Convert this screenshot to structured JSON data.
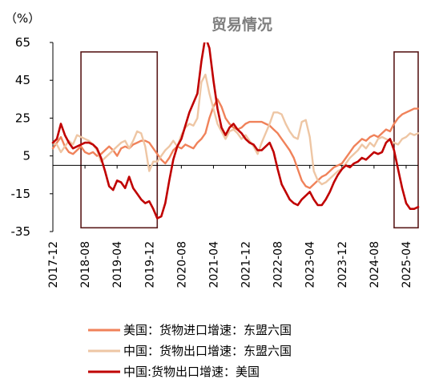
{
  "chart_data": {
    "type": "line",
    "title": "贸易情况",
    "unit_label": "（%）",
    "ylim": [
      -35,
      65
    ],
    "yticks": [
      -35,
      -15,
      5,
      25,
      45,
      65
    ],
    "x_start": "2017-12",
    "x_end": "2025-07",
    "xtick_labels": [
      "2017-12",
      "2018-08",
      "2019-04",
      "2019-12",
      "2020-08",
      "2021-04",
      "2021-12",
      "2022-08",
      "2023-04",
      "2023-12",
      "2024-08",
      "2025-04"
    ],
    "highlight_boxes": [
      {
        "x_from": "2018-07",
        "x_to": "2020-02",
        "y_from": -33,
        "y_to": 60
      },
      {
        "x_from": "2025-01",
        "x_to": "2025-07",
        "y_from": -33,
        "y_to": 60
      }
    ],
    "legend": {
      "position": "bottom"
    },
    "series": [
      {
        "name": "美国：货物进口增速：东盟六国",
        "color": "#f0825a",
        "values": [
          [
            "2017-12",
            9
          ],
          [
            "2018-01",
            12
          ],
          [
            "2018-02",
            15
          ],
          [
            "2018-03",
            10
          ],
          [
            "2018-04",
            7
          ],
          [
            "2018-05",
            6
          ],
          [
            "2018-06",
            8
          ],
          [
            "2018-07",
            10
          ],
          [
            "2018-08",
            7
          ],
          [
            "2018-09",
            6
          ],
          [
            "2018-10",
            7
          ],
          [
            "2018-11",
            5
          ],
          [
            "2018-12",
            6
          ],
          [
            "2019-01",
            8
          ],
          [
            "2019-02",
            10
          ],
          [
            "2019-03",
            8
          ],
          [
            "2019-04",
            5
          ],
          [
            "2019-05",
            9
          ],
          [
            "2019-06",
            10
          ],
          [
            "2019-07",
            9
          ],
          [
            "2019-08",
            11
          ],
          [
            "2019-09",
            12
          ],
          [
            "2019-10",
            13
          ],
          [
            "2019-11",
            13
          ],
          [
            "2019-12",
            12
          ],
          [
            "2020-01",
            9
          ],
          [
            "2020-02",
            6
          ],
          [
            "2020-03",
            3
          ],
          [
            "2020-04",
            1
          ],
          [
            "2020-05",
            4
          ],
          [
            "2020-06",
            8
          ],
          [
            "2020-07",
            10
          ],
          [
            "2020-08",
            9
          ],
          [
            "2020-09",
            11
          ],
          [
            "2020-10",
            10
          ],
          [
            "2020-11",
            9
          ],
          [
            "2020-12",
            12
          ],
          [
            "2021-01",
            14
          ],
          [
            "2021-02",
            17
          ],
          [
            "2021-03",
            25
          ],
          [
            "2021-04",
            31
          ],
          [
            "2021-05",
            35
          ],
          [
            "2021-06",
            31
          ],
          [
            "2021-07",
            25
          ],
          [
            "2021-08",
            22
          ],
          [
            "2021-09",
            20
          ],
          [
            "2021-10",
            19
          ],
          [
            "2021-11",
            20
          ],
          [
            "2021-12",
            22
          ],
          [
            "2022-01",
            23
          ],
          [
            "2022-02",
            23
          ],
          [
            "2022-03",
            23
          ],
          [
            "2022-04",
            23
          ],
          [
            "2022-05",
            22
          ],
          [
            "2022-06",
            21
          ],
          [
            "2022-07",
            19
          ],
          [
            "2022-08",
            17
          ],
          [
            "2022-09",
            14
          ],
          [
            "2022-10",
            11
          ],
          [
            "2022-11",
            8
          ],
          [
            "2022-12",
            4
          ],
          [
            "2023-01",
            -2
          ],
          [
            "2023-02",
            -8
          ],
          [
            "2023-03",
            -11
          ],
          [
            "2023-04",
            -12
          ],
          [
            "2023-05",
            -10
          ],
          [
            "2023-06",
            -8
          ],
          [
            "2023-07",
            -6
          ],
          [
            "2023-08",
            -5
          ],
          [
            "2023-09",
            -3
          ],
          [
            "2023-10",
            -1
          ],
          [
            "2023-11",
            0
          ],
          [
            "2023-12",
            1
          ],
          [
            "2024-01",
            4
          ],
          [
            "2024-02",
            7
          ],
          [
            "2024-03",
            10
          ],
          [
            "2024-04",
            12
          ],
          [
            "2024-05",
            14
          ],
          [
            "2024-06",
            13
          ],
          [
            "2024-07",
            15
          ],
          [
            "2024-08",
            16
          ],
          [
            "2024-09",
            15
          ],
          [
            "2024-10",
            17
          ],
          [
            "2024-11",
            19
          ],
          [
            "2024-12",
            18
          ],
          [
            "2025-01",
            22
          ],
          [
            "2025-02",
            25
          ],
          [
            "2025-03",
            27
          ],
          [
            "2025-04",
            28
          ],
          [
            "2025-05",
            29
          ],
          [
            "2025-06",
            30
          ],
          [
            "2025-07",
            30
          ]
        ]
      },
      {
        "name": "中国：货物出口增速：东盟六国",
        "color": "#eec6a4",
        "values": [
          [
            "2017-12",
            12
          ],
          [
            "2018-01",
            11
          ],
          [
            "2018-02",
            7
          ],
          [
            "2018-03",
            10
          ],
          [
            "2018-04",
            13
          ],
          [
            "2018-05",
            11
          ],
          [
            "2018-06",
            16
          ],
          [
            "2018-07",
            15
          ],
          [
            "2018-08",
            14
          ],
          [
            "2018-09",
            13
          ],
          [
            "2018-10",
            11
          ],
          [
            "2018-11",
            8
          ],
          [
            "2018-12",
            2
          ],
          [
            "2019-01",
            4
          ],
          [
            "2019-02",
            6
          ],
          [
            "2019-03",
            8
          ],
          [
            "2019-04",
            10
          ],
          [
            "2019-05",
            12
          ],
          [
            "2019-06",
            13
          ],
          [
            "2019-07",
            9
          ],
          [
            "2019-08",
            13
          ],
          [
            "2019-09",
            18
          ],
          [
            "2019-10",
            17
          ],
          [
            "2019-11",
            10
          ],
          [
            "2019-12",
            -3
          ],
          [
            "2020-01",
            2
          ],
          [
            "2020-02",
            2
          ],
          [
            "2020-03",
            5
          ],
          [
            "2020-04",
            8
          ],
          [
            "2020-05",
            10
          ],
          [
            "2020-06",
            13
          ],
          [
            "2020-07",
            10
          ],
          [
            "2020-08",
            16
          ],
          [
            "2020-09",
            20
          ],
          [
            "2020-10",
            22
          ],
          [
            "2020-11",
            21
          ],
          [
            "2020-12",
            25
          ],
          [
            "2021-01",
            44
          ],
          [
            "2021-02",
            48
          ],
          [
            "2021-03",
            38
          ],
          [
            "2021-04",
            30
          ],
          [
            "2021-05",
            22
          ],
          [
            "2021-06",
            18
          ],
          [
            "2021-07",
            14
          ],
          [
            "2021-08",
            18
          ],
          [
            "2021-09",
            19
          ],
          [
            "2021-10",
            17
          ],
          [
            "2021-11",
            14
          ],
          [
            "2021-12",
            16
          ],
          [
            "2022-01",
            13
          ],
          [
            "2022-02",
            10
          ],
          [
            "2022-03",
            6
          ],
          [
            "2022-04",
            12
          ],
          [
            "2022-05",
            17
          ],
          [
            "2022-06",
            22
          ],
          [
            "2022-07",
            28
          ],
          [
            "2022-08",
            28
          ],
          [
            "2022-09",
            27
          ],
          [
            "2022-10",
            22
          ],
          [
            "2022-11",
            18
          ],
          [
            "2022-12",
            15
          ],
          [
            "2023-01",
            14
          ],
          [
            "2023-02",
            23
          ],
          [
            "2023-03",
            24
          ],
          [
            "2023-04",
            15
          ],
          [
            "2023-05",
            -3
          ],
          [
            "2023-06",
            -8
          ],
          [
            "2023-07",
            -10
          ],
          [
            "2023-08",
            -9
          ],
          [
            "2023-09",
            -7
          ],
          [
            "2023-10",
            -5
          ],
          [
            "2023-11",
            -3
          ],
          [
            "2023-12",
            -2
          ],
          [
            "2024-01",
            1
          ],
          [
            "2024-02",
            4
          ],
          [
            "2024-03",
            6
          ],
          [
            "2024-04",
            8
          ],
          [
            "2024-05",
            11
          ],
          [
            "2024-06",
            9
          ],
          [
            "2024-07",
            12
          ],
          [
            "2024-08",
            10
          ],
          [
            "2024-09",
            14
          ],
          [
            "2024-10",
            15
          ],
          [
            "2024-11",
            14
          ],
          [
            "2024-12",
            13
          ],
          [
            "2025-01",
            12
          ],
          [
            "2025-02",
            11
          ],
          [
            "2025-03",
            14
          ],
          [
            "2025-04",
            15
          ],
          [
            "2025-05",
            17
          ],
          [
            "2025-06",
            16
          ],
          [
            "2025-07",
            17
          ]
        ]
      },
      {
        "name": "中国:货物出口增速：美国",
        "color": "#c00000",
        "values": [
          [
            "2017-12",
            12
          ],
          [
            "2018-01",
            14
          ],
          [
            "2018-02",
            22
          ],
          [
            "2018-03",
            16
          ],
          [
            "2018-04",
            12
          ],
          [
            "2018-05",
            9
          ],
          [
            "2018-06",
            10
          ],
          [
            "2018-07",
            11
          ],
          [
            "2018-08",
            12
          ],
          [
            "2018-09",
            12
          ],
          [
            "2018-10",
            11
          ],
          [
            "2018-11",
            9
          ],
          [
            "2018-12",
            4
          ],
          [
            "2019-01",
            -3
          ],
          [
            "2019-02",
            -11
          ],
          [
            "2019-03",
            -13
          ],
          [
            "2019-04",
            -8
          ],
          [
            "2019-05",
            -9
          ],
          [
            "2019-06",
            -12
          ],
          [
            "2019-07",
            -6
          ],
          [
            "2019-08",
            -12
          ],
          [
            "2019-09",
            -15
          ],
          [
            "2019-10",
            -18
          ],
          [
            "2019-11",
            -20
          ],
          [
            "2019-12",
            -19
          ],
          [
            "2020-01",
            -23
          ],
          [
            "2020-02",
            -28
          ],
          [
            "2020-03",
            -27
          ],
          [
            "2020-04",
            -20
          ],
          [
            "2020-05",
            -8
          ],
          [
            "2020-06",
            3
          ],
          [
            "2020-07",
            10
          ],
          [
            "2020-08",
            14
          ],
          [
            "2020-09",
            21
          ],
          [
            "2020-10",
            28
          ],
          [
            "2020-11",
            33
          ],
          [
            "2020-12",
            38
          ],
          [
            "2021-01",
            55
          ],
          [
            "2021-02",
            68
          ],
          [
            "2021-03",
            62
          ],
          [
            "2021-04",
            45
          ],
          [
            "2021-05",
            30
          ],
          [
            "2021-06",
            20
          ],
          [
            "2021-07",
            16
          ],
          [
            "2021-08",
            20
          ],
          [
            "2021-09",
            22
          ],
          [
            "2021-10",
            19
          ],
          [
            "2021-11",
            17
          ],
          [
            "2021-12",
            14
          ],
          [
            "2022-01",
            12
          ],
          [
            "2022-02",
            11
          ],
          [
            "2022-03",
            8
          ],
          [
            "2022-04",
            8
          ],
          [
            "2022-05",
            10
          ],
          [
            "2022-06",
            12
          ],
          [
            "2022-07",
            7
          ],
          [
            "2022-08",
            -2
          ],
          [
            "2022-09",
            -10
          ],
          [
            "2022-10",
            -14
          ],
          [
            "2022-11",
            -18
          ],
          [
            "2022-12",
            -20
          ],
          [
            "2023-01",
            -21
          ],
          [
            "2023-02",
            -18
          ],
          [
            "2023-03",
            -16
          ],
          [
            "2023-04",
            -14
          ],
          [
            "2023-05",
            -18
          ],
          [
            "2023-06",
            -21
          ],
          [
            "2023-07",
            -21
          ],
          [
            "2023-08",
            -18
          ],
          [
            "2023-09",
            -14
          ],
          [
            "2023-10",
            -9
          ],
          [
            "2023-11",
            -5
          ],
          [
            "2023-12",
            -2
          ],
          [
            "2024-01",
            0
          ],
          [
            "2024-02",
            -1
          ],
          [
            "2024-03",
            1
          ],
          [
            "2024-04",
            2
          ],
          [
            "2024-05",
            4
          ],
          [
            "2024-06",
            3
          ],
          [
            "2024-07",
            5
          ],
          [
            "2024-08",
            7
          ],
          [
            "2024-09",
            6
          ],
          [
            "2024-10",
            7
          ],
          [
            "2024-11",
            12
          ],
          [
            "2024-12",
            14
          ],
          [
            "2025-01",
            8
          ],
          [
            "2025-02",
            -2
          ],
          [
            "2025-03",
            -12
          ],
          [
            "2025-04",
            -20
          ],
          [
            "2025-05",
            -23
          ],
          [
            "2025-06",
            -23
          ],
          [
            "2025-07",
            -22
          ]
        ]
      }
    ]
  }
}
